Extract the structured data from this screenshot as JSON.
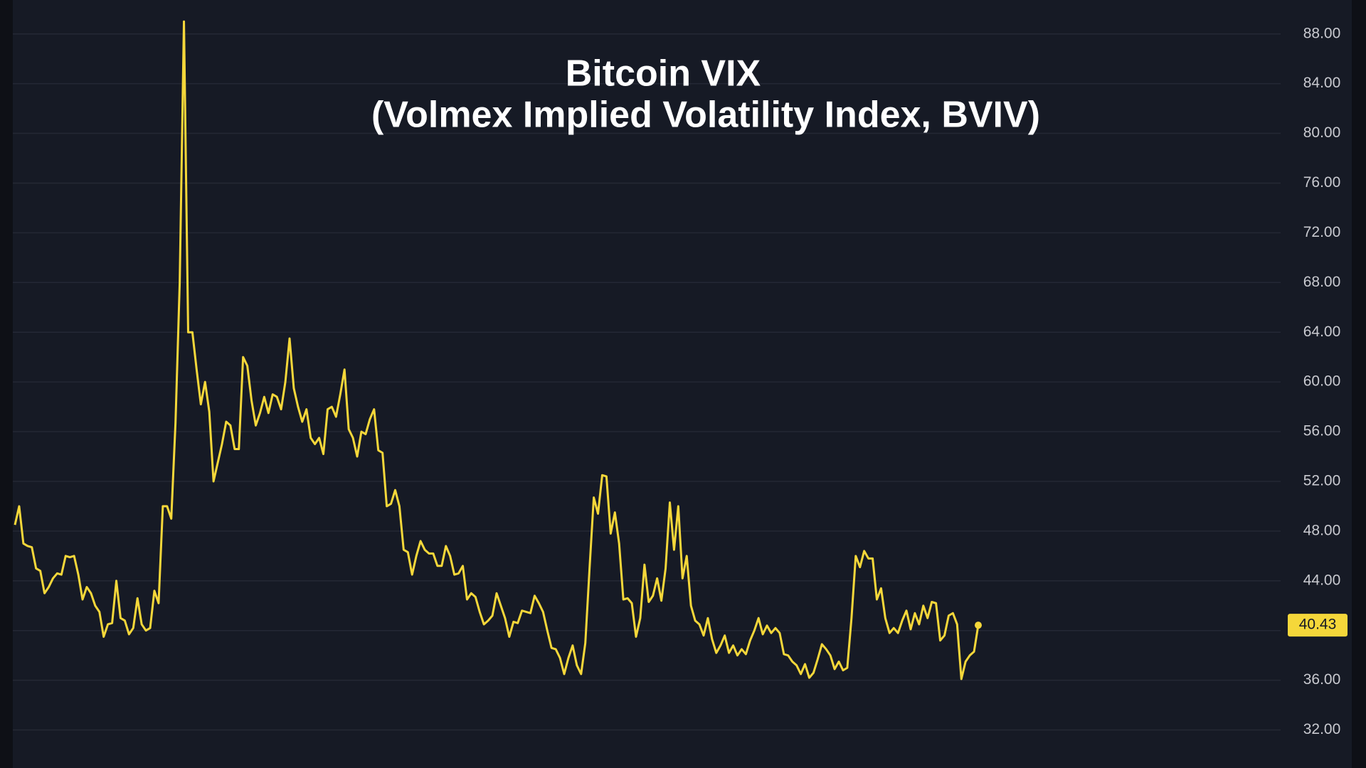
{
  "chart_data": {
    "type": "line",
    "title": "Bitcoin VIX",
    "subtitle": "(Volmex Implied Volatility Index, BVIV)",
    "series": [
      {
        "name": "BVIV",
        "color": "#f5d73a",
        "values": [
          48.5,
          50,
          47,
          46.8,
          46.7,
          45,
          44.8,
          43,
          43.5,
          44.2,
          44.6,
          44.5,
          46,
          45.9,
          46,
          44.5,
          42.5,
          43.5,
          43,
          42,
          41.5,
          39.5,
          40.5,
          40.6,
          44,
          41,
          40.8,
          39.7,
          40.2,
          42.6,
          40.5,
          40,
          40.2,
          43.2,
          42.2,
          50,
          50,
          49,
          56.7,
          68,
          89,
          64,
          64,
          61,
          58.2,
          60,
          57.6,
          52,
          53.5,
          55,
          56.8,
          56.5,
          54.6,
          54.6,
          62,
          61.3,
          58.5,
          56.5,
          57.5,
          58.8,
          57.5,
          59,
          58.8,
          57.8,
          60,
          63.5,
          59.5,
          58,
          56.8,
          57.8,
          55.5,
          55,
          55.5,
          54.2,
          57.8,
          58,
          57.2,
          59,
          61,
          56.2,
          55.5,
          54,
          56,
          55.8,
          57,
          57.8,
          54.5,
          54.3,
          50,
          50.2,
          51.3,
          50,
          46.5,
          46.3,
          44.5,
          46,
          47.2,
          46.5,
          46.2,
          46.2,
          45.2,
          45.2,
          46.8,
          46,
          44.5,
          44.6,
          45.2,
          42.5,
          43,
          42.7,
          41.5,
          40.5,
          40.8,
          41.2,
          43,
          42,
          41,
          39.5,
          40.7,
          40.6,
          41.6,
          41.5,
          41.4,
          42.8,
          42.2,
          41.5,
          40,
          38.6,
          38.5,
          37.8,
          36.5,
          37.8,
          38.8,
          37.2,
          36.5,
          39,
          45,
          50.7,
          49.4,
          52.5,
          52.4,
          47.8,
          49.5,
          47,
          42.5,
          42.6,
          42.2,
          39.5,
          41,
          45.3,
          42.3,
          42.8,
          44.2,
          42.4,
          45,
          50.3,
          46.5,
          50,
          44.2,
          46,
          42,
          40.8,
          40.5,
          39.6,
          41,
          39.3,
          38.2,
          38.8,
          39.6,
          38.2,
          38.8,
          38,
          38.5,
          38.1,
          39.2,
          40,
          41,
          39.7,
          40.4,
          39.8,
          40.2,
          39.8,
          38.1,
          38,
          37.5,
          37.2,
          36.5,
          37.3,
          36.2,
          36.6,
          37.7,
          38.9,
          38.5,
          38,
          36.9,
          37.5,
          36.8,
          37,
          41,
          46,
          45.1,
          46.4,
          45.8,
          45.8,
          42.5,
          43.4,
          41,
          39.8,
          40.2,
          39.8,
          40.8,
          41.6,
          40.1,
          41.4,
          40.5,
          42,
          41,
          42.3,
          42.2,
          39.2,
          39.6,
          41.2,
          41.4,
          40.5,
          36.1,
          37.5,
          38,
          38.3,
          40.43
        ]
      }
    ],
    "ylim": [
      30.6,
      89.3
    ],
    "yticks": [
      {
        "value": 32,
        "label": "32.00"
      },
      {
        "value": 36,
        "label": "36.00"
      },
      {
        "value": 40,
        "label": "40.00"
      },
      {
        "value": 44,
        "label": "44.00"
      },
      {
        "value": 48,
        "label": "48.00"
      },
      {
        "value": 52,
        "label": "52.00"
      },
      {
        "value": 56,
        "label": "56.00"
      },
      {
        "value": 60,
        "label": "60.00"
      },
      {
        "value": 64,
        "label": "64.00"
      },
      {
        "value": 68,
        "label": "68.00"
      },
      {
        "value": 72,
        "label": "72.00"
      },
      {
        "value": 76,
        "label": "76.00"
      },
      {
        "value": 80,
        "label": "80.00"
      },
      {
        "value": 84,
        "label": "84.00"
      },
      {
        "value": 88,
        "label": "88.00"
      }
    ],
    "grid": true
  }
}
